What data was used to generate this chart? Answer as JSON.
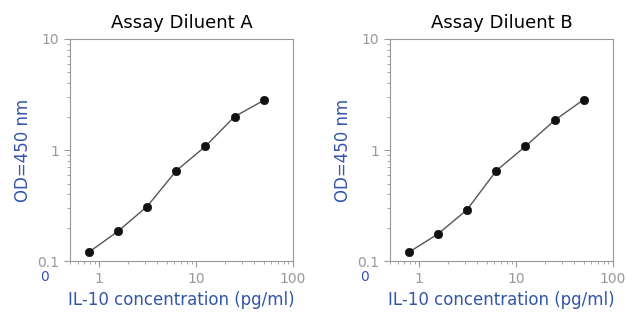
{
  "panel_A": {
    "title": "Assay Diluent A",
    "x": [
      0.78,
      1.56,
      3.125,
      6.25,
      12.5,
      25,
      50
    ],
    "y": [
      0.12,
      0.185,
      0.31,
      0.65,
      1.08,
      2.0,
      2.8
    ]
  },
  "panel_B": {
    "title": "Assay Diluent B",
    "x": [
      0.78,
      1.56,
      3.125,
      6.25,
      12.5,
      25,
      50
    ],
    "y": [
      0.12,
      0.175,
      0.29,
      0.65,
      1.08,
      1.85,
      2.85
    ]
  },
  "xlabel": "IL-10 concentration (pg/ml)",
  "ylabel": "OD=450 nm",
  "xlim": [
    0.5,
    100
  ],
  "ylim": [
    0.1,
    10
  ],
  "xticks": [
    1,
    10,
    100
  ],
  "xtick_labels": [
    "1",
    "10",
    "100"
  ],
  "x_minor_ticks": [
    2,
    3,
    4,
    5,
    6,
    7,
    8,
    9,
    20,
    30,
    40,
    50,
    60,
    70,
    80,
    90
  ],
  "yticks": [
    0.1,
    1,
    10
  ],
  "ytick_labels": [
    "0.1",
    "1",
    "10"
  ],
  "line_color": "#555555",
  "marker_color": "#111111",
  "marker_size": 6,
  "title_fontsize": 13,
  "label_fontsize": 12,
  "tick_fontsize": 10,
  "extra_xtick": 0,
  "extra_xtick_label": "0"
}
